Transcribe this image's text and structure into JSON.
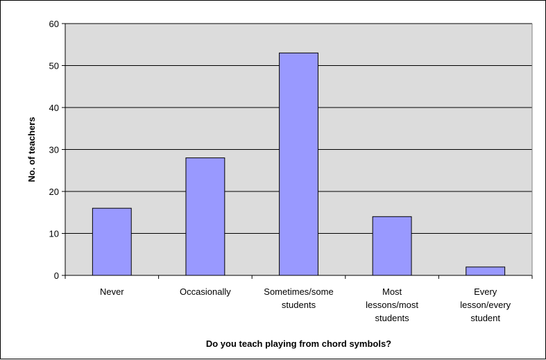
{
  "chart_data": {
    "type": "bar",
    "title": "",
    "xlabel": "Do you teach playing from chord symbols?",
    "ylabel": "No. of teachers",
    "categories": [
      [
        "Never"
      ],
      [
        "Occasionally"
      ],
      [
        "Sometimes/some",
        "students"
      ],
      [
        "Most",
        "lessons/most",
        "students"
      ],
      [
        "Every",
        "lesson/every",
        "student"
      ]
    ],
    "values": [
      16,
      28,
      53,
      14,
      2
    ],
    "ylim": [
      0,
      60
    ],
    "yticks": [
      0,
      10,
      20,
      30,
      40,
      50,
      60
    ],
    "grid": true,
    "legend": "none",
    "colors": {
      "bar_fill": "#9999ff",
      "bar_stroke": "#000000",
      "plot_background": "#dcdcdc",
      "gridline": "#000000"
    }
  }
}
